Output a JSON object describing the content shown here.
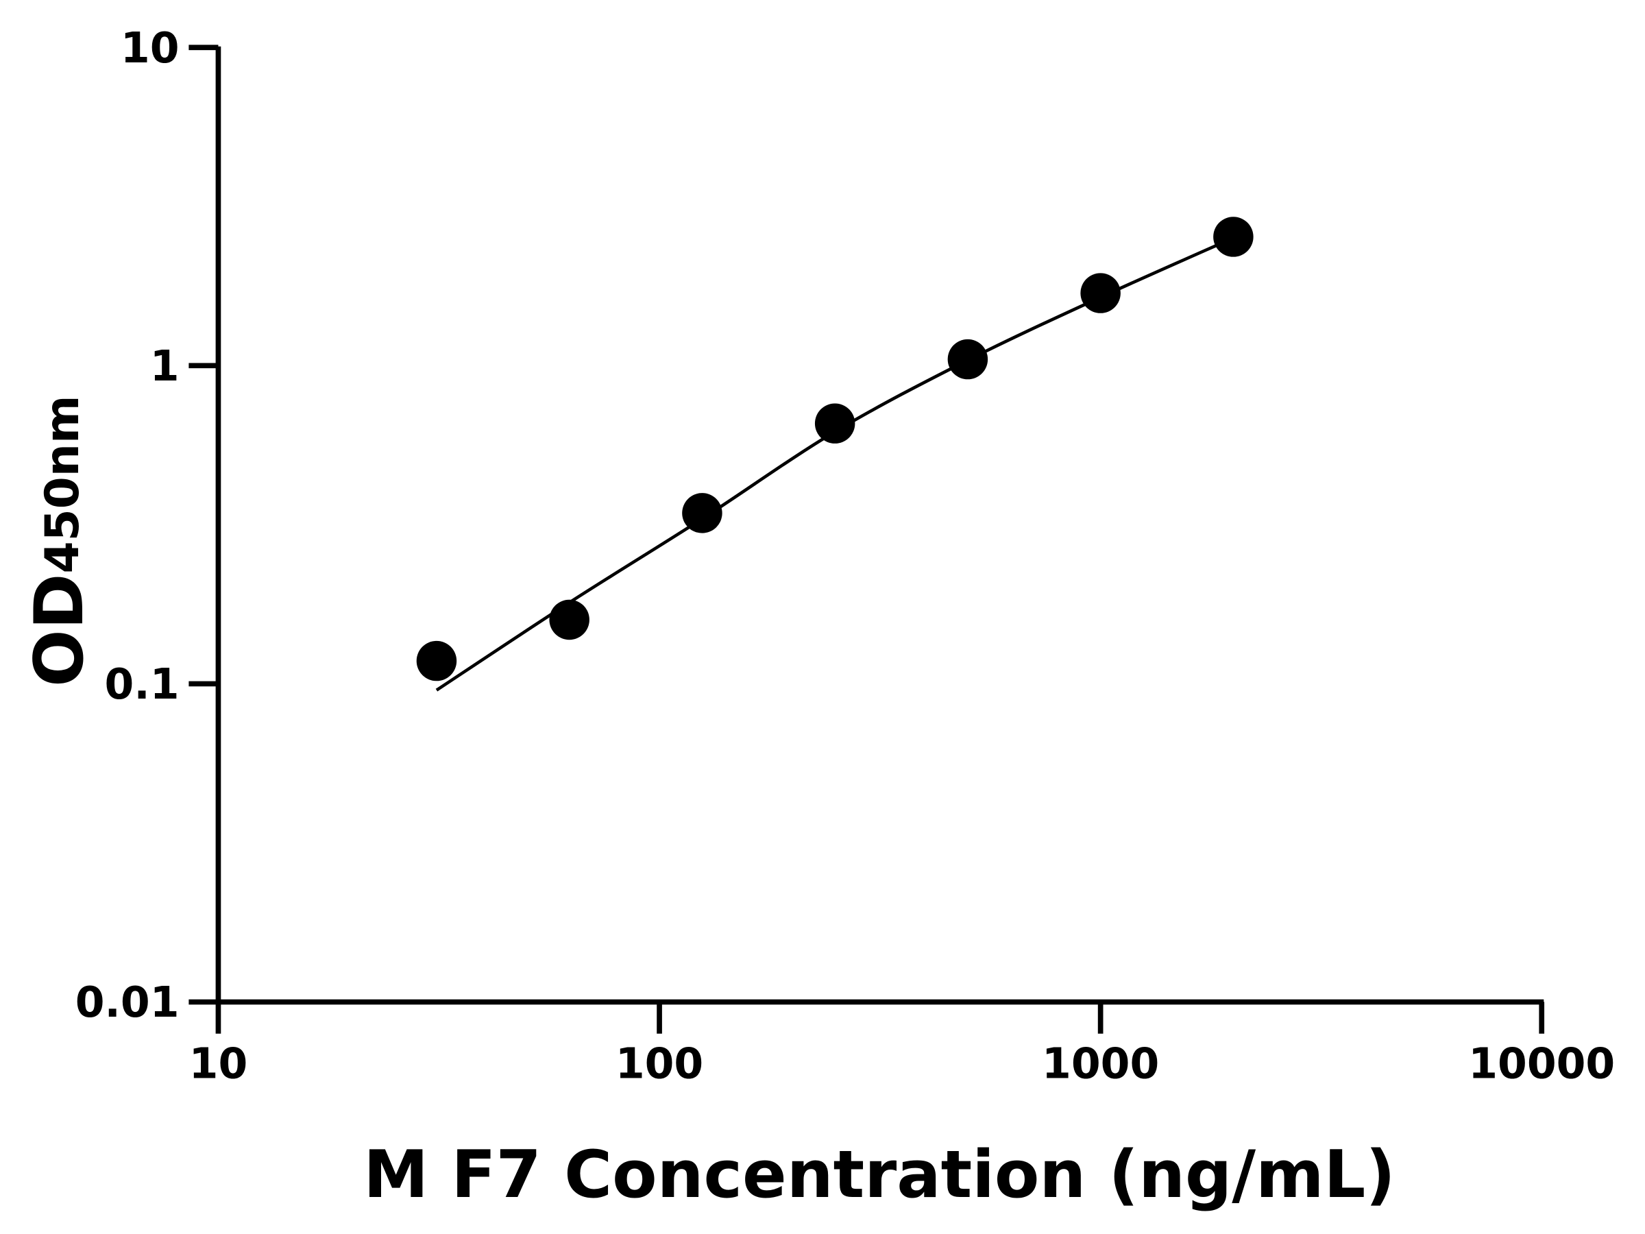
{
  "chart_data": {
    "type": "scatter",
    "title": "",
    "xlabel": "M F7 Concentration (ng/mL)",
    "ylabel": {
      "main": "OD",
      "subscript": "450nm"
    },
    "x_scale": "log",
    "y_scale": "log",
    "xlim": [
      10,
      10000
    ],
    "ylim": [
      0.01,
      10
    ],
    "x_ticks": [
      "10",
      "100",
      "1000",
      "10000"
    ],
    "y_ticks": [
      "0.01",
      "0.1",
      "1",
      "10"
    ],
    "grid": false,
    "legend": "none",
    "points": [
      {
        "x": 31.25,
        "y": 0.118
      },
      {
        "x": 62.5,
        "y": 0.159
      },
      {
        "x": 125,
        "y": 0.344
      },
      {
        "x": 250,
        "y": 0.658
      },
      {
        "x": 500,
        "y": 1.047
      },
      {
        "x": 1000,
        "y": 1.69
      },
      {
        "x": 2000,
        "y": 2.54
      }
    ],
    "fit_curve": {
      "x": [
        31.25,
        62.5,
        125,
        250,
        500,
        1000,
        2000
      ],
      "y": [
        0.0955,
        0.18,
        0.33,
        0.62,
        1.04,
        1.64,
        2.52
      ]
    },
    "colors": {
      "points": "#000000",
      "curve": "#000000",
      "axes": "#000000"
    }
  }
}
